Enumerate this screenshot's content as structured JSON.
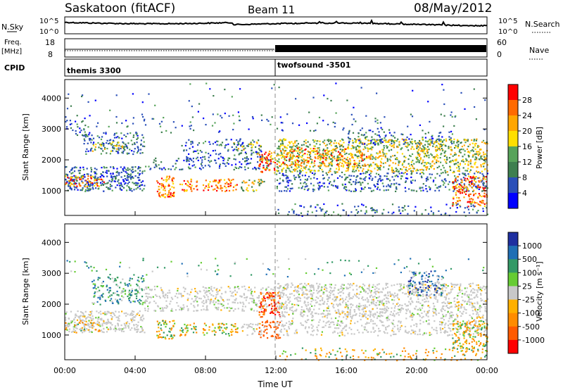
{
  "header": {
    "station": "Saskatoon (fitACF)",
    "beam": "Beam 11",
    "date": "08/May/2012"
  },
  "labels": {
    "nsky": "N.Sky",
    "nsearch": "N.Search",
    "freq": "Freq.",
    "mhz": "[MHz]",
    "nave": "Nave",
    "cpid": "CPID",
    "tick_1e5": "10^5",
    "tick_1e0": "10^0",
    "freq_top": "18",
    "freq_bottom": "8",
    "nave_top": "60",
    "nave_bottom": "0",
    "cpid_left": "themis 3300",
    "cpid_right": "twofsound -3501"
  },
  "colors": {
    "power": [
      "#0000ff",
      "#2a4fb8",
      "#3e7f4f",
      "#57a35a",
      "#ffdf00",
      "#ffa600",
      "#ff6a00",
      "#ff0000"
    ],
    "velocity": [
      "#ff0000",
      "#ff5a00",
      "#ff8c00",
      "#ffb000",
      "#c8c8c8",
      "#66cc33",
      "#339966",
      "#1f6fb5",
      "#1e2fa0"
    ]
  },
  "chart_data": [
    {
      "type": "heatmap",
      "name": "power-panel",
      "ylabel": "Slant Range [km]",
      "ylim": [
        200,
        4600
      ],
      "xlim": [
        0,
        24
      ],
      "yticks": [
        1000,
        2000,
        3000,
        4000
      ],
      "colorbar": {
        "label": "Power [dB]",
        "ticks": [
          "28",
          "24",
          "20",
          "16",
          "12",
          "8",
          "4"
        ],
        "range": [
          0,
          32
        ]
      },
      "cpid_boundary_ut": 12.0
    },
    {
      "type": "heatmap",
      "name": "velocity-panel",
      "ylabel": "Slant Range [km]",
      "xlabel": "Time UT",
      "ylim": [
        200,
        4600
      ],
      "xlim": [
        0,
        24
      ],
      "yticks": [
        1000,
        2000,
        3000,
        4000
      ],
      "xticks": [
        "00:00",
        "04:00",
        "08:00",
        "12:00",
        "16:00",
        "20:00",
        "00:00"
      ],
      "colorbar": {
        "label": "Velocity [m s⁻¹]",
        "ticks": [
          "1000",
          "500",
          "100",
          "25",
          "-25",
          "-100",
          "-500",
          "-1000"
        ]
      }
    }
  ]
}
